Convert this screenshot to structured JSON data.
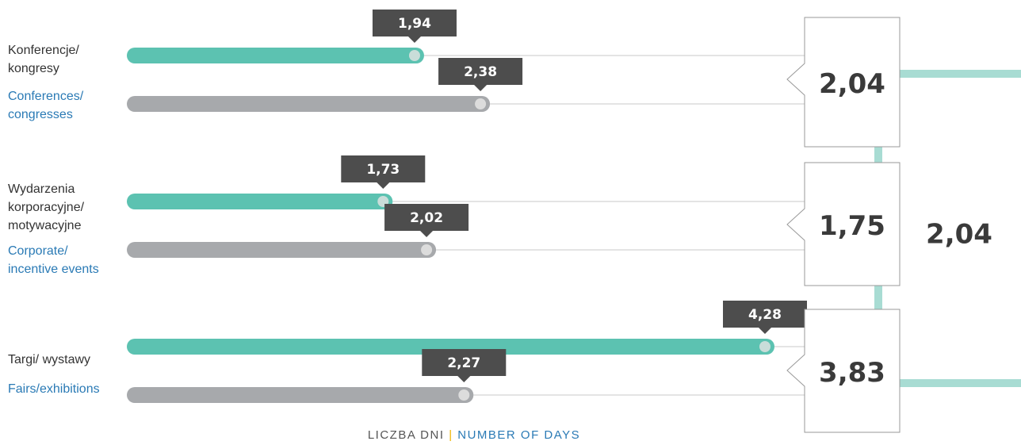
{
  "chart_data": {
    "type": "bar",
    "orientation": "horizontal",
    "categories": [
      "Konferencje/\nkongresy",
      "Wydarzenia\nkorporacyjne/\nmotywacyjne",
      "Targi/ wystawy"
    ],
    "categories_en": [
      "Conferences/\ncongresses",
      "Corporate/\nincentive events",
      "Fairs/exhibitions"
    ],
    "series": [
      {
        "color": "#5cc2b1",
        "dot_color": "#c9ddd9",
        "values": [
          1.94,
          1.73,
          4.28
        ],
        "value_labels": [
          "1,94",
          "1,73",
          "4,28"
        ]
      },
      {
        "color": "#a7a9ac",
        "dot_color": "#dcdcdc",
        "values": [
          2.38,
          2.02,
          2.27
        ],
        "value_labels": [
          "2,38",
          "2,02",
          "2,27"
        ]
      }
    ],
    "averages": {
      "values": [
        2.04,
        1.75,
        3.83
      ],
      "value_labels": [
        "2,04",
        "1,75",
        "3,83"
      ]
    },
    "overall": {
      "value": 2.04,
      "label": "2,04"
    },
    "x_label_pl": "LICZBA DNI",
    "x_label_separator": "|",
    "x_label_en": "NUMBER OF DAYS",
    "connector_color": "#a8dcd3"
  }
}
